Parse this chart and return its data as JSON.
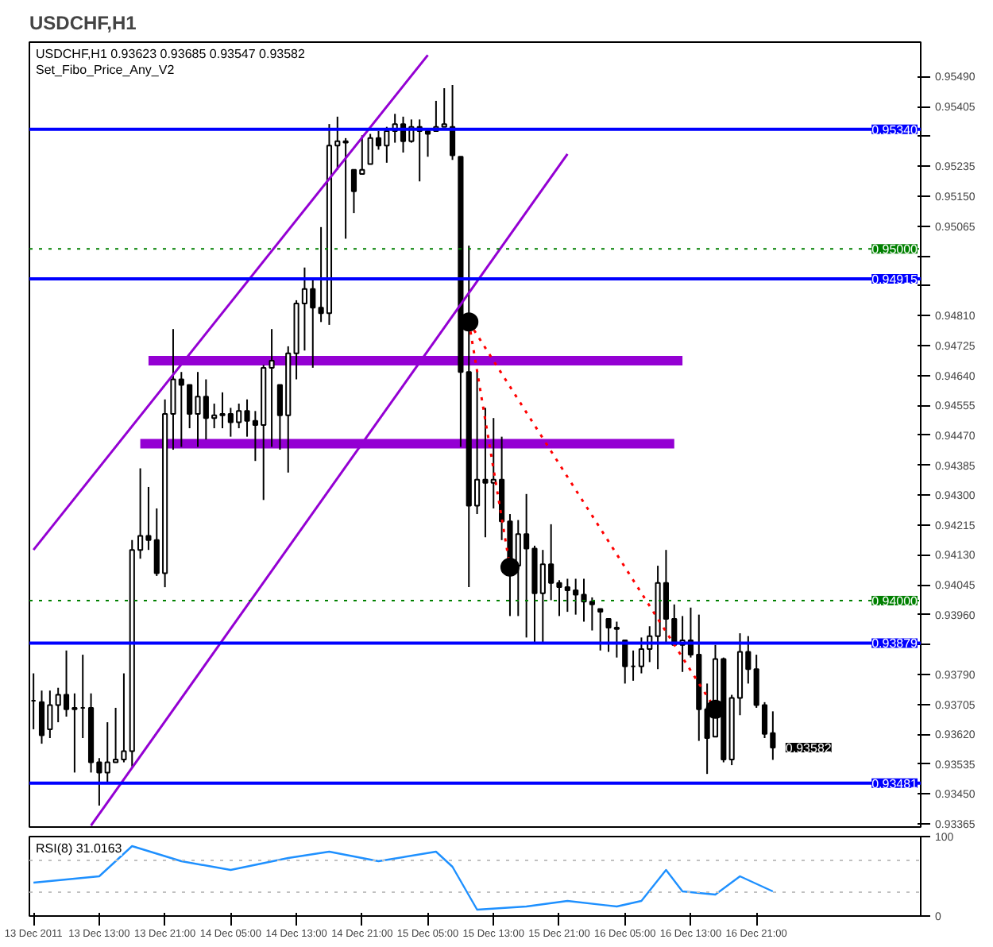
{
  "chart_data": [
    {
      "type": "candlestick",
      "title": "USDCHF,H1",
      "color": "#000000",
      "x": [
        "2011-12-13T05:00",
        "2011-12-13T06:00",
        "2011-12-13T07:00",
        "2011-12-13T08:00",
        "2011-12-13T09:00",
        "2011-12-13T10:00",
        "2011-12-13T11:00",
        "2011-12-13T12:00",
        "2011-12-13T13:00",
        "2011-12-13T14:00",
        "2011-12-13T15:00",
        "2011-12-13T16:00",
        "2011-12-13T17:00",
        "2011-12-13T18:00",
        "2011-12-13T19:00",
        "2011-12-13T20:00",
        "2011-12-13T21:00",
        "2011-12-13T22:00",
        "2011-12-13T23:00",
        "2011-12-14T00:00",
        "2011-12-14T01:00",
        "2011-12-14T02:00",
        "2011-12-14T03:00",
        "2011-12-14T04:00",
        "2011-12-14T05:00",
        "2011-12-14T06:00",
        "2011-12-14T07:00",
        "2011-12-14T08:00",
        "2011-12-14T09:00",
        "2011-12-14T10:00",
        "2011-12-14T11:00",
        "2011-12-14T12:00",
        "2011-12-14T13:00",
        "2011-12-14T14:00",
        "2011-12-14T15:00",
        "2011-12-14T16:00",
        "2011-12-14T17:00",
        "2011-12-14T18:00",
        "2011-12-14T19:00",
        "2011-12-14T20:00",
        "2011-12-14T21:00",
        "2011-12-14T22:00",
        "2011-12-14T23:00",
        "2011-12-15T00:00",
        "2011-12-15T01:00",
        "2011-12-15T02:00",
        "2011-12-15T03:00",
        "2011-12-15T04:00",
        "2011-12-15T05:00",
        "2011-12-15T06:00",
        "2011-12-15T07:00",
        "2011-12-15T08:00",
        "2011-12-15T09:00",
        "2011-12-15T10:00",
        "2011-12-15T11:00",
        "2011-12-15T12:00",
        "2011-12-15T13:00",
        "2011-12-15T14:00",
        "2011-12-15T15:00",
        "2011-12-15T16:00",
        "2011-12-15T17:00",
        "2011-12-15T18:00",
        "2011-12-15T19:00",
        "2011-12-15T20:00",
        "2011-12-15T21:00",
        "2011-12-15T22:00",
        "2011-12-15T23:00",
        "2011-12-16T00:00",
        "2011-12-16T01:00",
        "2011-12-16T02:00",
        "2011-12-16T03:00",
        "2011-12-16T04:00",
        "2011-12-16T05:00",
        "2011-12-16T06:00",
        "2011-12-16T07:00",
        "2011-12-16T08:00",
        "2011-12-16T09:00",
        "2011-12-16T10:00",
        "2011-12-16T11:00",
        "2011-12-16T12:00",
        "2011-12-16T13:00",
        "2011-12-16T14:00",
        "2011-12-16T15:00",
        "2011-12-16T16:00",
        "2011-12-16T17:00",
        "2011-12-16T18:00",
        "2011-12-16T19:00",
        "2011-12-16T20:00",
        "2011-12-16T21:00",
        "2011-12-16T22:00",
        "2011-12-16T23:00"
      ],
      "ohlc": [
        [
          0.93715,
          0.93793,
          0.93634,
          0.93715
        ],
        [
          0.93711,
          0.93744,
          0.93593,
          0.93617
        ],
        [
          0.93634,
          0.93744,
          0.93609,
          0.93703
        ],
        [
          0.93703,
          0.93752,
          0.93654,
          0.93732
        ],
        [
          0.93732,
          0.93858,
          0.9367,
          0.93691
        ],
        [
          0.93691,
          0.93736,
          0.93511,
          0.93695
        ],
        [
          0.93695,
          0.93846,
          0.93609,
          0.93695
        ],
        [
          0.93695,
          0.93736,
          0.93511,
          0.9354
        ],
        [
          0.9354,
          0.93552,
          0.93417,
          0.93511
        ],
        [
          0.93511,
          0.93654,
          0.93479,
          0.9354
        ],
        [
          0.9354,
          0.93695,
          0.9354,
          0.93548
        ],
        [
          0.93548,
          0.93793,
          0.9354,
          0.93572
        ],
        [
          0.93572,
          0.94172,
          0.93528,
          0.94144
        ],
        [
          0.94144,
          0.94376,
          0.94119,
          0.94184
        ],
        [
          0.94184,
          0.94323,
          0.94144,
          0.94172
        ],
        [
          0.94172,
          0.94262,
          0.9407,
          0.94078
        ],
        [
          0.94078,
          0.94572,
          0.94038,
          0.94531
        ],
        [
          0.94531,
          0.94772,
          0.94429,
          0.94629
        ],
        [
          0.94629,
          0.9465,
          0.94437,
          0.94613
        ],
        [
          0.94613,
          0.94613,
          0.9449,
          0.94531
        ],
        [
          0.94531,
          0.9465,
          0.94437,
          0.9458
        ],
        [
          0.9458,
          0.94629,
          0.94458,
          0.94519
        ],
        [
          0.94519,
          0.9456,
          0.9449,
          0.94527
        ],
        [
          0.94527,
          0.94592,
          0.9449,
          0.94531
        ],
        [
          0.94531,
          0.94548,
          0.94466,
          0.94507
        ],
        [
          0.94507,
          0.9456,
          0.9449,
          0.94539
        ],
        [
          0.94539,
          0.94572,
          0.94466,
          0.94511
        ],
        [
          0.94511,
          0.94539,
          0.94397,
          0.94499
        ],
        [
          0.94499,
          0.9467,
          0.94286,
          0.94662
        ],
        [
          0.94662,
          0.94772,
          0.94437,
          0.94682
        ],
        [
          0.94613,
          0.94613,
          0.94429,
          0.94527
        ],
        [
          0.94527,
          0.94723,
          0.94364,
          0.94703
        ],
        [
          0.94703,
          0.94854,
          0.94629,
          0.94845
        ],
        [
          0.94845,
          0.94947,
          0.94711,
          0.94886
        ],
        [
          0.94886,
          0.94919,
          0.94662,
          0.94833
        ],
        [
          0.94833,
          0.95062,
          0.94792,
          0.94817
        ],
        [
          0.94817,
          0.95355,
          0.94784,
          0.95294
        ],
        [
          0.95294,
          0.95376,
          0.95225,
          0.95306
        ],
        [
          0.95306,
          0.95315,
          0.95029,
          0.95302
        ],
        [
          0.95225,
          0.95225,
          0.95102,
          0.95164
        ],
        [
          0.95213,
          0.95323,
          0.95213,
          0.95225
        ],
        [
          0.95241,
          0.95327,
          0.95241,
          0.95315
        ],
        [
          0.95315,
          0.95335,
          0.95282,
          0.95294
        ],
        [
          0.95294,
          0.95347,
          0.95245,
          0.95335
        ],
        [
          0.95335,
          0.95384,
          0.95302,
          0.95355
        ],
        [
          0.95355,
          0.95376,
          0.95274,
          0.95306
        ],
        [
          0.95306,
          0.95368,
          0.95302,
          0.95347
        ],
        [
          0.95347,
          0.95368,
          0.95192,
          0.95335
        ],
        [
          0.95335,
          0.95343,
          0.95262,
          0.95327
        ],
        [
          0.95335,
          0.95421,
          0.95335,
          0.95347
        ],
        [
          0.95347,
          0.95457,
          0.95347,
          0.95355
        ],
        [
          0.95347,
          0.95466,
          0.95253,
          0.95266
        ],
        [
          0.95262,
          0.95262,
          0.94437,
          0.9465
        ],
        [
          0.9465,
          0.95009,
          0.94038,
          0.9427
        ],
        [
          0.9427,
          0.94654,
          0.94246,
          0.94344
        ],
        [
          0.94344,
          0.94548,
          0.9418,
          0.94335
        ],
        [
          0.94335,
          0.94519,
          0.94262,
          0.94344
        ],
        [
          0.94344,
          0.94466,
          0.94172,
          0.94225
        ],
        [
          0.94225,
          0.94246,
          0.93956,
          0.94099
        ],
        [
          0.94099,
          0.94229,
          0.93956,
          0.94189
        ],
        [
          0.94189,
          0.94303,
          0.93895,
          0.94148
        ],
        [
          0.94148,
          0.94156,
          0.93878,
          0.94021
        ],
        [
          0.94021,
          0.94144,
          0.93878,
          0.94103
        ],
        [
          0.94103,
          0.94217,
          0.94001,
          0.9405
        ],
        [
          0.9405,
          0.94058,
          0.93956,
          0.94038
        ],
        [
          0.94038,
          0.94062,
          0.93968,
          0.94029
        ],
        [
          0.94029,
          0.94062,
          0.9396,
          0.94017
        ],
        [
          0.94017,
          0.94062,
          0.9394,
          0.93997
        ],
        [
          0.93997,
          0.94009,
          0.93915,
          0.93989
        ],
        [
          0.93976,
          0.93976,
          0.93858,
          0.93968
        ],
        [
          0.93948,
          0.93948,
          0.93854,
          0.93923
        ],
        [
          0.93923,
          0.9394,
          0.93838,
          0.93919
        ],
        [
          0.93887,
          0.93887,
          0.93764,
          0.93813
        ],
        [
          0.93813,
          0.93858,
          0.93772,
          0.93813
        ],
        [
          0.93813,
          0.93895,
          0.93793,
          0.93862
        ],
        [
          0.93862,
          0.93927,
          0.93825,
          0.93899
        ],
        [
          0.93899,
          0.94099,
          0.93805,
          0.9405
        ],
        [
          0.9405,
          0.94144,
          0.93878,
          0.93948
        ],
        [
          0.93948,
          0.93989,
          0.93874,
          0.93874
        ],
        [
          0.93874,
          0.93956,
          0.93797,
          0.93887
        ],
        [
          0.93887,
          0.9398,
          0.93838,
          0.93846
        ],
        [
          0.93846,
          0.9396,
          0.93601,
          0.93691
        ],
        [
          0.93691,
          0.93764,
          0.93507,
          0.93609
        ],
        [
          0.93613,
          0.93874,
          0.93613,
          0.93834
        ],
        [
          0.93834,
          0.93838,
          0.9354,
          0.93548
        ],
        [
          0.93548,
          0.93732,
          0.93532,
          0.93723
        ],
        [
          0.93723,
          0.93907,
          0.93674,
          0.93854
        ],
        [
          0.93854,
          0.93899,
          0.93764,
          0.93805
        ],
        [
          0.93805,
          0.93846,
          0.93695,
          0.93703
        ],
        [
          0.93703,
          0.93711,
          0.93609,
          0.93621
        ],
        [
          0.93623,
          0.93685,
          0.93547,
          0.93582
        ]
      ],
      "series": [
        {
          "type": "line",
          "color": "#9400d3",
          "line_style": "solid",
          "x": [
            "2011-12-13T05:00",
            "2011-12-15T05:00"
          ],
          "values": [
            0.94144,
            0.95551
          ]
        },
        {
          "type": "line",
          "color": "#9400d3",
          "line_style": "solid",
          "x": [
            "2011-12-13T12:00",
            "2011-12-15T22:00"
          ],
          "values": [
            0.9336,
            0.9527
          ]
        },
        {
          "type": "line",
          "color": "#9400d3",
          "line_style": "solid",
          "x": [
            "2011-12-13T19:00",
            "2011-12-16T12:00"
          ],
          "values": [
            0.94682,
            0.94682
          ]
        },
        {
          "type": "line",
          "color": "#9400d3",
          "line_style": "solid",
          "x": [
            "2011-12-13T18:00",
            "2011-12-16T11:00"
          ],
          "values": [
            0.94446,
            0.94446
          ]
        },
        {
          "type": "line",
          "color": "#ff0000",
          "line_style": "dotted",
          "x": [
            "2011-12-15T10:00",
            "2011-12-15T15:00"
          ],
          "values": [
            0.94792,
            0.94095
          ]
        },
        {
          "type": "line",
          "color": "#ff0000",
          "line_style": "dotted",
          "x": [
            "2011-12-15T10:00",
            "2011-12-16T16:00"
          ],
          "values": [
            0.94792,
            0.93691
          ]
        },
        {
          "type": "scatter",
          "color": "#000000",
          "marker": "circle",
          "x": [
            "2011-12-15T10:00",
            "2011-12-15T15:00",
            "2011-12-16T16:00"
          ],
          "values": [
            0.94792,
            0.94095,
            0.93691
          ]
        }
      ],
      "ref_lines": [
        {
          "axis": "y",
          "value": 0.9534,
          "label": "0.95340",
          "color": "#0000ff",
          "line_style": "solid"
        },
        {
          "axis": "y",
          "value": 0.94915,
          "label": "0.94915",
          "color": "#0000ff",
          "line_style": "solid"
        },
        {
          "axis": "y",
          "value": 0.93879,
          "label": "0.93879",
          "color": "#0000ff",
          "line_style": "solid"
        },
        {
          "axis": "y",
          "value": 0.93481,
          "label": "0.93481",
          "color": "#0000ff",
          "line_style": "solid"
        },
        {
          "axis": "y",
          "value": 0.95,
          "label": "0.95000",
          "color": "#008000",
          "line_style": "dotted"
        },
        {
          "axis": "y",
          "value": 0.94,
          "label": "0.94000",
          "color": "#008000",
          "line_style": "dotted"
        }
      ],
      "annotations": [
        "USDCHF,H1  0.93623 0.93685 0.93547 0.93582",
        "Set_Fibo_Price_Any_V2",
        {
          "text": "0.93582",
          "x": "2011-12-16T23:00",
          "y": 0.93582
        }
      ],
      "xlim": [
        "2011-12-13T04:30",
        "2011-12-17T17:00"
      ],
      "ylim": [
        0.93356,
        0.95588
      ],
      "yticks": [
        {
          "value": 0.9549,
          "label": "0.95490"
        },
        {
          "value": 0.95405,
          "label": "0.95405"
        },
        {
          "value": 0.9532,
          "label": null
        },
        {
          "value": 0.95235,
          "label": "0.95235"
        },
        {
          "value": 0.9515,
          "label": "0.95150"
        },
        {
          "value": 0.95065,
          "label": "0.95065"
        },
        {
          "value": 0.9498,
          "label": null
        },
        {
          "value": 0.94895,
          "label": null
        },
        {
          "value": 0.9481,
          "label": "0.94810"
        },
        {
          "value": 0.94725,
          "label": "0.94725"
        },
        {
          "value": 0.9464,
          "label": "0.94640"
        },
        {
          "value": 0.94555,
          "label": "0.94555"
        },
        {
          "value": 0.9447,
          "label": "0.94470"
        },
        {
          "value": 0.94385,
          "label": "0.94385"
        },
        {
          "value": 0.943,
          "label": "0.94300"
        },
        {
          "value": 0.94215,
          "label": "0.94215"
        },
        {
          "value": 0.9413,
          "label": "0.94130"
        },
        {
          "value": 0.94045,
          "label": "0.94045"
        },
        {
          "value": 0.9396,
          "label": "0.93960"
        },
        {
          "value": 0.93875,
          "label": null
        },
        {
          "value": 0.9379,
          "label": "0.93790"
        },
        {
          "value": 0.93705,
          "label": "0.93705"
        },
        {
          "value": 0.9362,
          "label": "0.93620"
        },
        {
          "value": 0.93535,
          "label": "0.93535"
        },
        {
          "value": 0.9345,
          "label": "0.93450"
        },
        {
          "value": 0.93365,
          "label": "0.93365"
        }
      ],
      "tick_labels": "y"
    },
    {
      "type": "line",
      "color": "#1e90ff",
      "x": [
        "2011-12-13T05:00",
        "2011-12-13T13:00",
        "2011-12-13T17:00",
        "2011-12-13T23:00",
        "2011-12-14T05:00",
        "2011-12-14T12:00",
        "2011-12-14T17:00",
        "2011-12-14T23:00",
        "2011-12-15T06:00",
        "2011-12-15T08:00",
        "2011-12-15T11:00",
        "2011-12-15T17:00",
        "2011-12-15T22:00",
        "2011-12-16T04:00",
        "2011-12-16T07:00",
        "2011-12-16T10:00",
        "2011-12-16T12:00",
        "2011-12-16T16:00",
        "2011-12-16T19:00",
        "2011-12-16T23:00"
      ],
      "values": [
        42,
        50,
        88,
        69,
        58,
        73,
        81,
        69,
        81,
        62,
        8,
        12,
        19,
        12,
        19,
        58,
        31,
        27,
        50,
        31
      ],
      "ref_lines": [
        {
          "axis": "y",
          "value": 70,
          "color": "#c0c0c0",
          "line_style": "dotted"
        },
        {
          "axis": "y",
          "value": 30,
          "color": "#c0c0c0",
          "line_style": "dotted"
        }
      ],
      "annotations": [
        "RSI(8) 31.0163"
      ],
      "xlim": [
        "2011-12-13T04:30",
        "2011-12-17T17:00"
      ],
      "ylim": [
        0,
        100
      ],
      "yticks": [
        0,
        100
      ],
      "xticks": [
        {
          "value": "2011-12-13T05:00",
          "label": "13 Dec 2011"
        },
        {
          "value": "2011-12-13T13:00",
          "label": "13 Dec 13:00"
        },
        {
          "value": "2011-12-13T21:00",
          "label": "13 Dec 21:00"
        },
        {
          "value": "2011-12-14T05:00",
          "label": "14 Dec 05:00"
        },
        {
          "value": "2011-12-14T13:00",
          "label": "14 Dec 13:00"
        },
        {
          "value": "2011-12-14T21:00",
          "label": "14 Dec 21:00"
        },
        {
          "value": "2011-12-15T05:00",
          "label": "15 Dec 05:00"
        },
        {
          "value": "2011-12-15T13:00",
          "label": "15 Dec 13:00"
        },
        {
          "value": "2011-12-15T21:00",
          "label": "15 Dec 21:00"
        },
        {
          "value": "2011-12-16T05:00",
          "label": "16 Dec 05:00"
        },
        {
          "value": "2011-12-16T13:00",
          "label": "16 Dec 13:00"
        },
        {
          "value": "2011-12-16T21:00",
          "label": "16 Dec 21:00"
        }
      ]
    }
  ]
}
